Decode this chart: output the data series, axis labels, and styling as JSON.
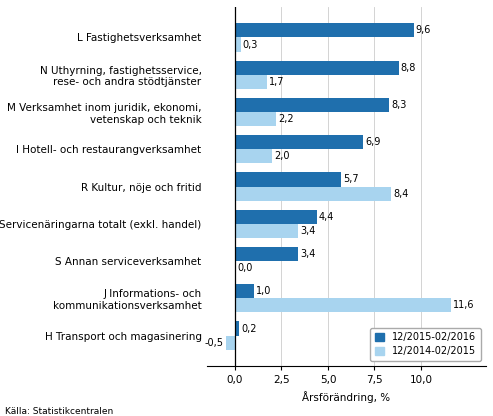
{
  "categories": [
    "H Transport och magasinering",
    "J Informations- och\nkommunikationsverksamhet",
    "S Annan serviceverksamhet",
    "Servicenäringarna totalt (exkl. handel)",
    "R Kultur, nöje och fritid",
    "I Hotell- och restaurangverksamhet",
    "M Verksamhet inom juridik, ekonomi,\nvetenskap och teknik",
    "N Uthyrning, fastighetsservice,\nrese- och andra stödtjänster",
    "L Fastighetsverksamhet"
  ],
  "values_2015_2016": [
    0.2,
    1.0,
    3.4,
    4.4,
    5.7,
    6.9,
    8.3,
    8.8,
    9.6
  ],
  "values_2014_2015": [
    -0.5,
    11.6,
    0.0,
    3.4,
    8.4,
    2.0,
    2.2,
    1.7,
    0.3
  ],
  "labels_2015_2016": [
    "0,2",
    "1,0",
    "3,4",
    "4,4",
    "5,7",
    "6,9",
    "8,3",
    "8,8",
    "9,6"
  ],
  "labels_2014_2015": [
    "-0,5",
    "11,6",
    "0,0",
    "3,4",
    "8,4",
    "2,0",
    "2,2",
    "1,7",
    "0,3"
  ],
  "color_2015_2016": "#1f6fad",
  "color_2014_2015": "#a8d4ef",
  "xlabel": "Årsförändring, %",
  "legend_2015_2016": "12/2015-02/2016",
  "legend_2014_2015": "12/2014-02/2015",
  "source": "Källa: Statistikcentralen",
  "xlim": [
    -1.5,
    13.5
  ],
  "xticks": [
    0.0,
    2.5,
    5.0,
    7.5,
    10.0
  ],
  "xtick_labels": [
    "0,0",
    "2,5",
    "5,0",
    "7,5",
    "10,0"
  ],
  "bar_height": 0.38,
  "tick_fontsize": 7.5,
  "label_fontsize": 7.5,
  "value_fontsize": 7.0
}
